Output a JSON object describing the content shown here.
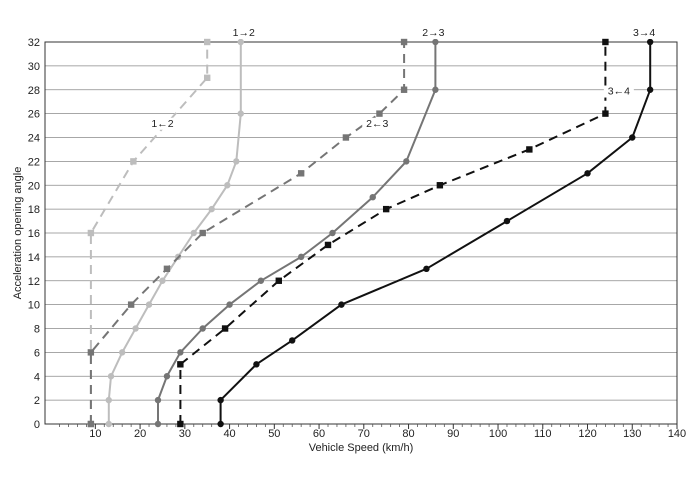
{
  "chart_data": {
    "type": "line",
    "xlabel": "Vehicle Speed (km/h)",
    "ylabel": "Acceleration opening angle",
    "xlim": [
      0,
      140
    ],
    "ylim": [
      0,
      32
    ],
    "x_ticks": [
      10,
      20,
      30,
      40,
      50,
      60,
      70,
      80,
      90,
      100,
      110,
      120,
      130,
      140
    ],
    "y_ticks": [
      0,
      2,
      4,
      6,
      8,
      10,
      12,
      14,
      16,
      18,
      20,
      22,
      24,
      26,
      28,
      30,
      32
    ],
    "grid": {
      "horizontal": true,
      "vertical": false
    },
    "series": [
      {
        "name": "1→2",
        "direction": "upshift",
        "color": "#bdbdbd",
        "dash": "solid",
        "marker": "circle",
        "points": [
          [
            13,
            0
          ],
          [
            13,
            2
          ],
          [
            13.5,
            4
          ],
          [
            16,
            6
          ],
          [
            19,
            8
          ],
          [
            22,
            10
          ],
          [
            25,
            12
          ],
          [
            28.5,
            14
          ],
          [
            32,
            16
          ],
          [
            36,
            18
          ],
          [
            39.5,
            20
          ],
          [
            41.5,
            22
          ],
          [
            42.5,
            26
          ],
          [
            42.5,
            32
          ]
        ]
      },
      {
        "name": "1←2",
        "direction": "downshift",
        "color": "#bdbdbd",
        "dash": "dashed",
        "marker": "square",
        "points": [
          [
            9,
            0
          ],
          [
            9,
            16
          ],
          [
            18.5,
            22
          ],
          [
            35,
            29
          ],
          [
            35,
            32
          ]
        ]
      },
      {
        "name": "2→3",
        "direction": "upshift",
        "color": "#757575",
        "dash": "solid",
        "marker": "circle",
        "points": [
          [
            24,
            0
          ],
          [
            24,
            2
          ],
          [
            26,
            4
          ],
          [
            29,
            6
          ],
          [
            34,
            8
          ],
          [
            40,
            10
          ],
          [
            47,
            12
          ],
          [
            56,
            14
          ],
          [
            63,
            16
          ],
          [
            72,
            19
          ],
          [
            79.5,
            22
          ],
          [
            86,
            28
          ],
          [
            86,
            32
          ]
        ]
      },
      {
        "name": "2←3",
        "direction": "downshift",
        "color": "#757575",
        "dash": "dashed",
        "marker": "square",
        "points": [
          [
            9,
            0
          ],
          [
            9,
            6
          ],
          [
            18,
            10
          ],
          [
            26,
            13
          ],
          [
            34,
            16
          ],
          [
            56,
            21
          ],
          [
            66,
            24
          ],
          [
            73.5,
            26
          ],
          [
            79,
            28
          ],
          [
            79,
            32
          ]
        ]
      },
      {
        "name": "3→4",
        "direction": "upshift",
        "color": "#111111",
        "dash": "solid",
        "marker": "circle",
        "points": [
          [
            38,
            0
          ],
          [
            38,
            2
          ],
          [
            46,
            5
          ],
          [
            54,
            7
          ],
          [
            65,
            10
          ],
          [
            84,
            13
          ],
          [
            102,
            17
          ],
          [
            120,
            21
          ],
          [
            130,
            24
          ],
          [
            134,
            28
          ],
          [
            134,
            32
          ]
        ]
      },
      {
        "name": "3←4",
        "direction": "downshift",
        "color": "#111111",
        "dash": "dashed",
        "marker": "square",
        "points": [
          [
            29,
            0
          ],
          [
            29,
            5
          ],
          [
            39,
            8
          ],
          [
            51,
            12
          ],
          [
            62,
            15
          ],
          [
            75,
            18
          ],
          [
            87,
            20
          ],
          [
            107,
            23
          ],
          [
            124,
            26
          ],
          [
            124,
            32
          ]
        ]
      }
    ]
  }
}
